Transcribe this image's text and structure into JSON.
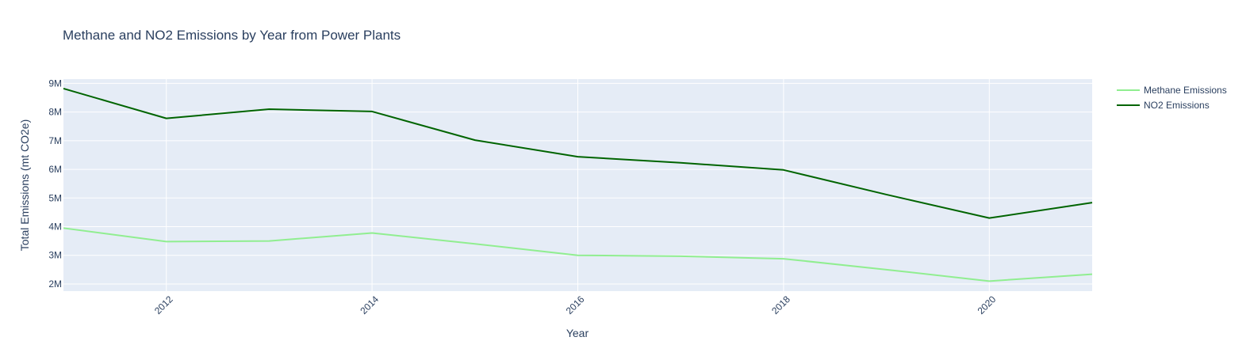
{
  "chart_data": {
    "type": "line",
    "title": "Methane and NO2 Emissions by Year from Power Plants",
    "xlabel": "Year",
    "ylabel": "Total Emissions (mt CO2e)",
    "x": [
      2011,
      2012,
      2013,
      2014,
      2015,
      2016,
      2017,
      2018,
      2019,
      2020,
      2021
    ],
    "xlim": [
      2011,
      2021
    ],
    "ylim": [
      1750000,
      9150000
    ],
    "x_ticks": [
      2012,
      2014,
      2016,
      2018,
      2020
    ],
    "x_tick_labels": [
      "2012",
      "2014",
      "2016",
      "2018",
      "2020"
    ],
    "y_ticks": [
      2000000,
      3000000,
      4000000,
      5000000,
      6000000,
      7000000,
      8000000,
      9000000
    ],
    "y_tick_labels": [
      "2M",
      "3M",
      "4M",
      "5M",
      "6M",
      "7M",
      "8M",
      "9M"
    ],
    "grid": true,
    "legend_position": "top-right",
    "plot_background": "#e5ecf6",
    "series": [
      {
        "name": "Methane Emissions",
        "color": "#90ee90",
        "values": [
          3950000,
          3480000,
          3500000,
          3780000,
          3400000,
          3000000,
          2970000,
          2880000,
          2500000,
          2100000,
          2340000
        ]
      },
      {
        "name": "NO2 Emissions",
        "color": "#006400",
        "values": [
          8820000,
          7780000,
          8100000,
          8020000,
          7020000,
          6440000,
          6230000,
          5980000,
          5120000,
          4300000,
          4840000
        ]
      }
    ]
  }
}
